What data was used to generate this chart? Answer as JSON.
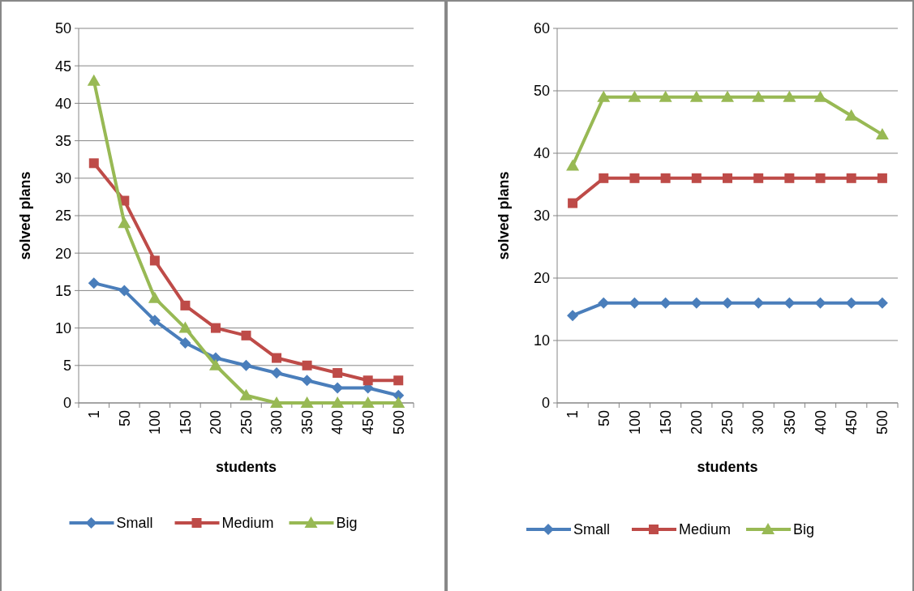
{
  "chart_data": [
    {
      "type": "line",
      "xlabel": "students",
      "ylabel": "solved plans",
      "categories": [
        "1",
        "50",
        "100",
        "150",
        "200",
        "250",
        "300",
        "350",
        "400",
        "450",
        "500"
      ],
      "ylim": [
        0,
        50
      ],
      "yticks": [
        0,
        5,
        10,
        15,
        20,
        25,
        30,
        35,
        40,
        45,
        50
      ],
      "grid": "y",
      "legend": "bottom",
      "series": [
        {
          "name": "Small",
          "color": "#4a7ebb",
          "marker": "diamond",
          "values": [
            16,
            15,
            11,
            8,
            6,
            5,
            4,
            3,
            2,
            2,
            1
          ]
        },
        {
          "name": "Medium",
          "color": "#be4b48",
          "marker": "square",
          "values": [
            32,
            27,
            19,
            13,
            10,
            9,
            6,
            5,
            4,
            3,
            3
          ]
        },
        {
          "name": "Big",
          "color": "#98b954",
          "marker": "triangle",
          "values": [
            43,
            24,
            14,
            10,
            5,
            1,
            0,
            0,
            0,
            0,
            0
          ]
        }
      ]
    },
    {
      "type": "line",
      "xlabel": "students",
      "ylabel": "solved plans",
      "categories": [
        "1",
        "50",
        "100",
        "150",
        "200",
        "250",
        "300",
        "350",
        "400",
        "450",
        "500"
      ],
      "ylim": [
        0,
        60
      ],
      "yticks": [
        0,
        10,
        20,
        30,
        40,
        50,
        60
      ],
      "grid": "y",
      "legend": "bottom",
      "series": [
        {
          "name": "Small",
          "color": "#4a7ebb",
          "marker": "diamond",
          "values": [
            14,
            16,
            16,
            16,
            16,
            16,
            16,
            16,
            16,
            16,
            16
          ]
        },
        {
          "name": "Medium",
          "color": "#be4b48",
          "marker": "square",
          "values": [
            32,
            36,
            36,
            36,
            36,
            36,
            36,
            36,
            36,
            36,
            36
          ]
        },
        {
          "name": "Big",
          "color": "#98b954",
          "marker": "triangle",
          "values": [
            38,
            49,
            49,
            49,
            49,
            49,
            49,
            49,
            49,
            46,
            43
          ]
        }
      ]
    }
  ]
}
